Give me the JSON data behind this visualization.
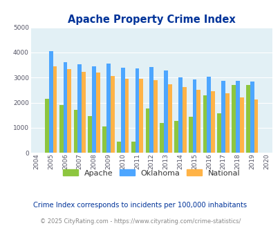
{
  "title": "Apache Property Crime Index",
  "plot_years": [
    2005,
    2006,
    2007,
    2008,
    2009,
    2010,
    2011,
    2012,
    2013,
    2014,
    2015,
    2016,
    2017,
    2018,
    2019
  ],
  "apache_vals": [
    2150,
    1900,
    1720,
    1470,
    1050,
    450,
    430,
    1770,
    1200,
    1280,
    1430,
    2280,
    1560,
    2690,
    2700
  ],
  "oklahoma_vals": [
    4050,
    3600,
    3530,
    3440,
    3560,
    3390,
    3360,
    3410,
    3280,
    3010,
    2920,
    3020,
    2870,
    2870,
    2830
  ],
  "national_vals": [
    3440,
    3330,
    3230,
    3200,
    3050,
    2960,
    2940,
    2890,
    2740,
    2620,
    2500,
    2460,
    2360,
    2200,
    2120
  ],
  "apache_color": "#8dc63f",
  "oklahoma_color": "#4da6ff",
  "national_color": "#ffb347",
  "bg_color": "#e2f0f5",
  "title_color": "#003399",
  "subtitle_text": "Crime Index corresponds to incidents per 100,000 inhabitants",
  "footer_text": "© 2025 CityRating.com - https://www.cityrating.com/crime-statistics/",
  "ylim": [
    0,
    5000
  ],
  "yticks": [
    0,
    1000,
    2000,
    3000,
    4000,
    5000
  ],
  "bar_width": 0.28,
  "legend_labels": [
    "Apache",
    "Oklahoma",
    "National"
  ],
  "all_years": [
    2004,
    2005,
    2006,
    2007,
    2008,
    2009,
    2010,
    2011,
    2012,
    2013,
    2014,
    2015,
    2016,
    2017,
    2018,
    2019,
    2020
  ]
}
